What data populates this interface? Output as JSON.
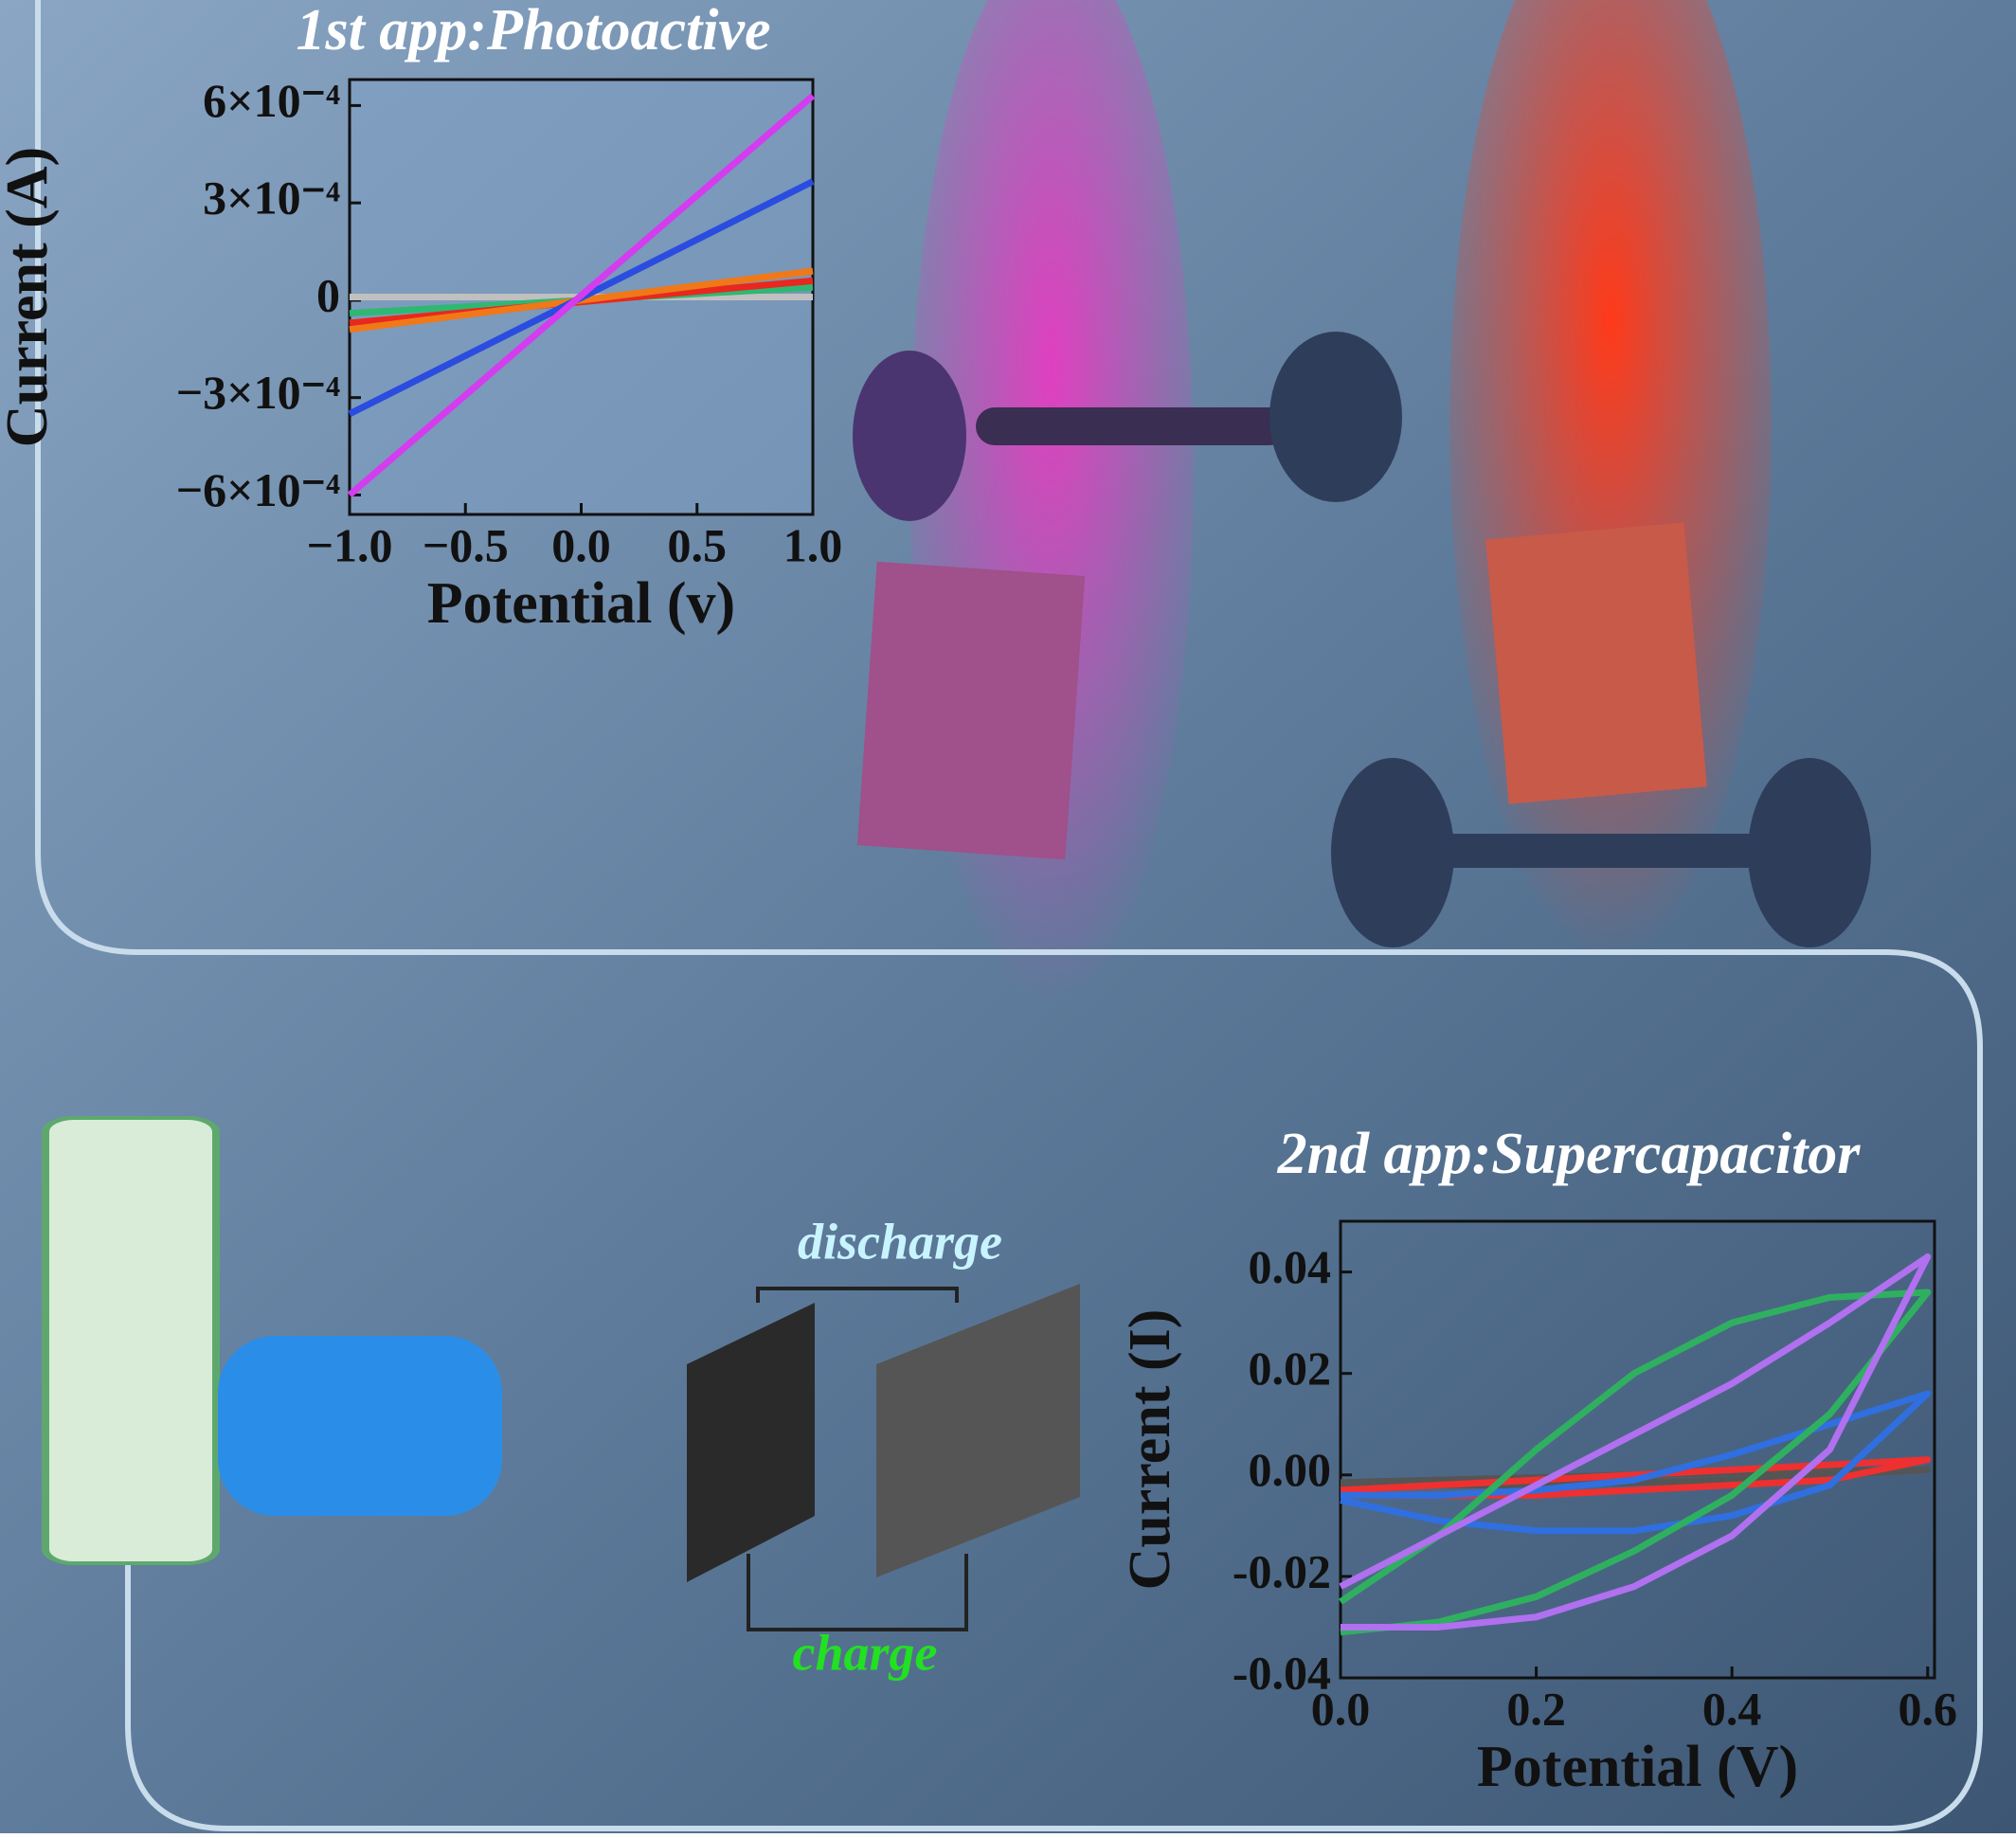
{
  "chart_data": [
    {
      "type": "line",
      "title": "1st app:Photoactive",
      "x_label": "Potential (v)",
      "y_label": "Current (A)",
      "x": [
        -1,
        1
      ],
      "xlim": [
        -1,
        1
      ],
      "ylim": [
        -0.00066,
        0.00068
      ],
      "xticks": [
        {
          "value": -1,
          "label": "−1.0"
        },
        {
          "value": -0.5,
          "label": "−0.5"
        },
        {
          "value": 0,
          "label": "0.0"
        },
        {
          "value": 0.5,
          "label": "0.5"
        },
        {
          "value": 1,
          "label": "1.0"
        }
      ],
      "yticks": [
        {
          "value": 0.0006,
          "label": "6×10⁻⁴"
        },
        {
          "value": 0.0003,
          "label": "3×10⁻⁴"
        },
        0,
        {
          "value": -0.0003,
          "label": "−3×10⁻⁴"
        },
        {
          "value": -0.0006,
          "label": "−6×10⁻⁴"
        }
      ],
      "series": [
        {
          "color": "#c0c0c0",
          "values": [
            1e-05,
            1e-05
          ]
        },
        {
          "color": "#2eb872",
          "values": [
            -4e-05,
            4e-05
          ]
        },
        {
          "color": "#e8281e",
          "values": [
            -7e-05,
            6e-05
          ]
        },
        {
          "color": "#f07818",
          "values": [
            -9e-05,
            9e-05
          ]
        },
        {
          "color": "#2a4de0",
          "values": [
            -0.00035,
            0.000366
          ]
        },
        {
          "color": "#d43cf0",
          "values": [
            -0.0006,
            0.00063
          ]
        }
      ]
    },
    {
      "type": "line",
      "title": "2nd app:Supercapacitor",
      "x_label": "Potential (V)",
      "y_label": "Current (I)",
      "x": [
        0,
        0.1,
        0.2,
        0.3,
        0.4,
        0.5,
        0.6,
        0.5,
        0.4,
        0.3,
        0.2,
        0.1,
        0
      ],
      "xlim": [
        0,
        0.607
      ],
      "ylim": [
        -0.04,
        0.05
      ],
      "xticks": [
        {
          "value": 0,
          "label": "0.0"
        },
        0.2,
        0.4,
        0.6
      ],
      "yticks": [
        0.04,
        0.02,
        {
          "value": 0,
          "label": "0.00"
        },
        -0.02,
        -0.04
      ],
      "series": [
        {
          "color": "#555555",
          "values": [
            -0.002,
            -0.002,
            -0.002,
            -0.0015,
            -0.001,
            0,
            0.001,
            0.0008,
            0.0004,
            0,
            -0.0005,
            -0.001,
            -0.0015
          ]
        },
        {
          "color": "#ee3030",
          "values": [
            -0.004,
            -0.004,
            -0.004,
            -0.003,
            -0.002,
            -0.001,
            0.003,
            0.002,
            0.001,
            0,
            -0.001,
            -0.002,
            -0.003
          ]
        },
        {
          "color": "#2f6fe0",
          "values": [
            -0.005,
            -0.009,
            -0.011,
            -0.011,
            -0.008,
            -0.002,
            0.016,
            0.01,
            0.004,
            -0.001,
            -0.003,
            -0.004,
            -0.004
          ]
        },
        {
          "color": "#2fb060",
          "values": [
            -0.031,
            -0.029,
            -0.024,
            -0.015,
            -0.004,
            0.012,
            0.036,
            0.035,
            0.03,
            0.02,
            0.005,
            -0.012,
            -0.025
          ]
        },
        {
          "color": "#b070f0",
          "values": [
            -0.03,
            -0.03,
            -0.028,
            -0.022,
            -0.012,
            0.005,
            0.043,
            0.03,
            0.018,
            0.008,
            -0.002,
            -0.012,
            -0.022
          ]
        }
      ]
    }
  ],
  "labels": {
    "discharge": "discharge",
    "charge": "charge"
  }
}
